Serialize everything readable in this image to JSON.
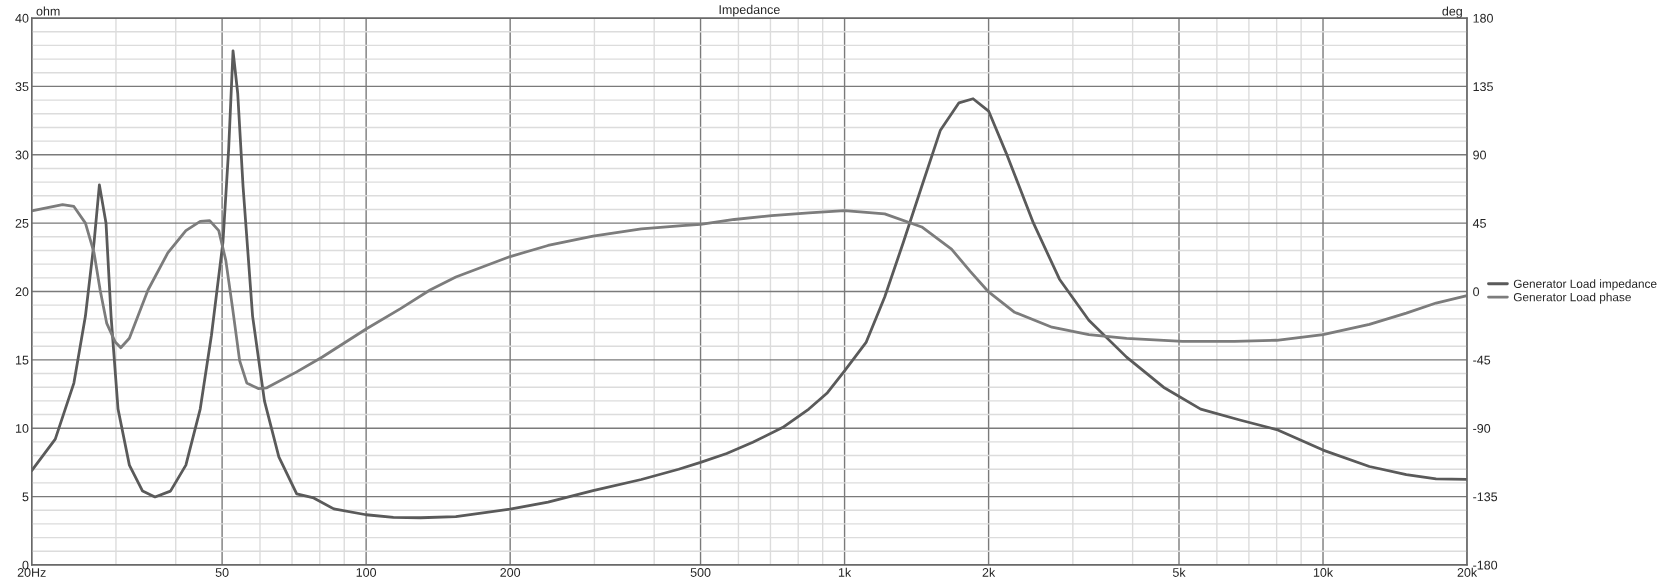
{
  "chart_data": {
    "type": "line",
    "title": "Impedance",
    "ylabel": "ohm",
    "y2label": "deg",
    "xlim": [
      20,
      20000
    ],
    "xticks": [
      {
        "value": 20,
        "label": "20Hz"
      },
      50,
      100,
      200,
      500,
      {
        "value": 1000,
        "label": "1k"
      },
      {
        "value": 2000,
        "label": "2k"
      },
      {
        "value": 5000,
        "label": "5k"
      },
      {
        "value": 10000,
        "label": "10k"
      },
      {
        "value": 20000,
        "label": "20k"
      }
    ],
    "ylim": [
      0,
      40
    ],
    "yticks": [
      0,
      5,
      10,
      15,
      20,
      25,
      30,
      35,
      40
    ],
    "y2lim": [
      -180,
      180
    ],
    "y2ticks": [
      -180,
      -135,
      -90,
      -45,
      0,
      45,
      90,
      135,
      180
    ],
    "log": "x",
    "grid": true,
    "legend": "right",
    "line_style": "solid",
    "marker": "none",
    "series": [
      {
        "name": "Generator Load impedance",
        "color": "#5a5a5a",
        "x": [
          20,
          22.4,
          24.5,
          25.9,
          27.0,
          27.7,
          28.6,
          29.3,
          30.3,
          32.0,
          34.1,
          36.2,
          39.0,
          42.0,
          45.0,
          47.5,
          50.2,
          51.6,
          52.7,
          53.9,
          55.3,
          57.9,
          61.3,
          65.7,
          71.6,
          77.7,
          85.6,
          100,
          114,
          130,
          154,
          200,
          240,
          298,
          376,
          450,
          500,
          567,
          643,
          742,
          842,
          921,
          1000,
          1110,
          1213,
          1327,
          1450,
          1586,
          1734,
          1856,
          2000,
          2190,
          2482,
          2813,
          3240,
          3885,
          4640,
          5550,
          6700,
          8000,
          10000,
          12500,
          14930,
          17230,
          20000
        ],
        "values": [
          6.9,
          9.2,
          13.3,
          18.2,
          23.6,
          27.8,
          25,
          18.2,
          11.4,
          7.3,
          5.4,
          4.97,
          5.4,
          7.3,
          11.4,
          16.8,
          23.6,
          30.4,
          37.6,
          34.5,
          27.7,
          18.2,
          12.0,
          7.9,
          5.2,
          4.9,
          4.1,
          3.67,
          3.48,
          3.45,
          3.53,
          4.08,
          4.6,
          5.43,
          6.25,
          7.0,
          7.5,
          8.15,
          8.97,
          10.05,
          11.4,
          12.6,
          14.2,
          16.3,
          19.6,
          23.6,
          27.7,
          31.8,
          33.8,
          34.1,
          33.2,
          29.9,
          25,
          20.9,
          17.9,
          15.2,
          13.0,
          11.4,
          10.6,
          9.9,
          8.4,
          7.2,
          6.6,
          6.3,
          6.25
        ]
      },
      {
        "name": "Generator Load phase",
        "color": "#7c7c7c",
        "axis": "y2",
        "x": [
          20,
          23.2,
          24.5,
          25.9,
          27.0,
          27.8,
          28.7,
          29.9,
          30.7,
          32.0,
          35.0,
          38.5,
          42.0,
          45.0,
          47.1,
          49.2,
          50.9,
          52.6,
          54.4,
          56.3,
          59.5,
          62,
          71.6,
          81,
          100,
          118,
          136,
          154,
          200,
          240,
          298,
          376,
          458,
          500,
          588,
          704,
          842,
          1000,
          1213,
          1450,
          1673,
          1831,
          2000,
          2267,
          2713,
          3240,
          3885,
          5085,
          6530,
          8000,
          10000,
          12500,
          14930,
          17230,
          20000
        ],
        "values": [
          53.1,
          57.2,
          56,
          45,
          25.4,
          1,
          -21,
          -33.3,
          -37,
          -30.8,
          1,
          25.4,
          40.1,
          46.2,
          46.7,
          40.1,
          20.5,
          -11.3,
          -45.5,
          -60.2,
          -63.9,
          -63.4,
          -52.9,
          -43.1,
          -24.7,
          -11.3,
          1,
          9.5,
          23,
          30.3,
          36.4,
          41.3,
          43.3,
          44.2,
          47.4,
          49.9,
          51.8,
          53.3,
          51.1,
          42.5,
          27.9,
          13.2,
          -0.3,
          -13.7,
          -23.5,
          -28.4,
          -30.8,
          -32.8,
          -32.8,
          -32.1,
          -28.4,
          -21.6,
          -14.2,
          -7.6,
          -2.7
        ]
      }
    ]
  }
}
